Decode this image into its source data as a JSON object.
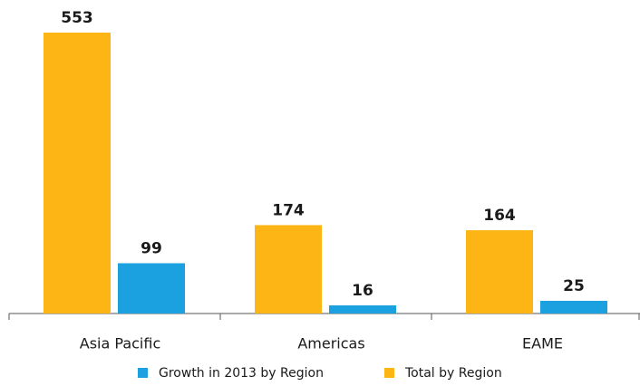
{
  "chart_data": {
    "type": "bar",
    "categories": [
      "Asia Pacific",
      "Americas",
      "EAME"
    ],
    "series": [
      {
        "name": "Growth in 2013 by Region",
        "color": "#1ba1df",
        "values": [
          99,
          16,
          25
        ]
      },
      {
        "name": "Total by Region",
        "color": "#fcb515",
        "values": [
          553,
          174,
          164
        ]
      }
    ],
    "ylim": [
      0,
      553
    ]
  }
}
